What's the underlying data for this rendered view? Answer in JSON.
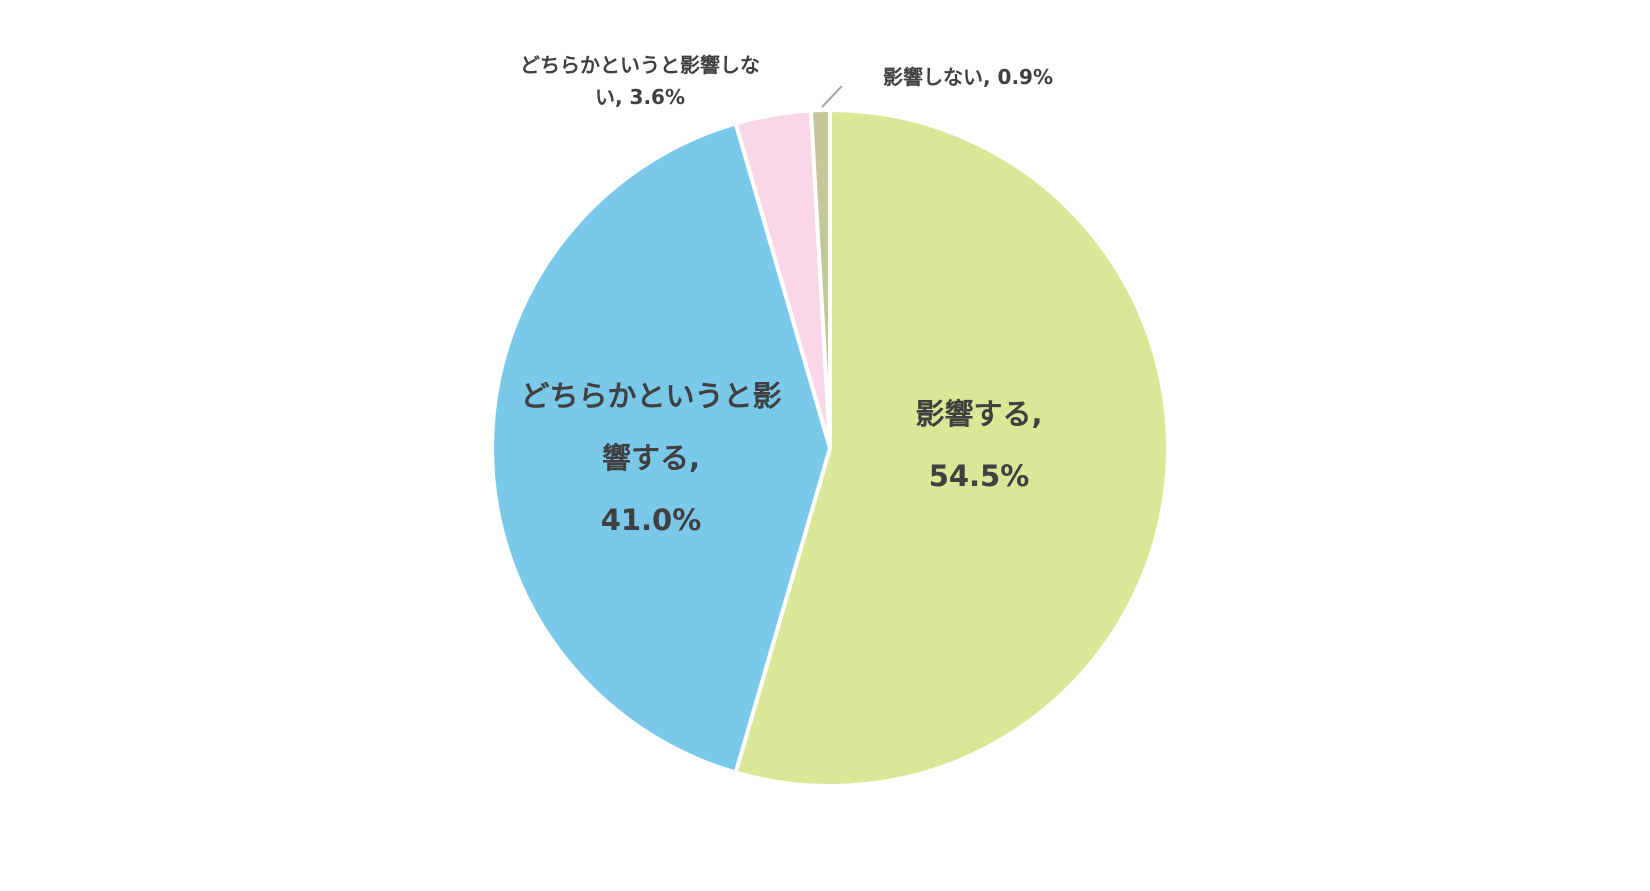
{
  "chart_data": {
    "type": "pie",
    "categories": [
      "影響する",
      "どちらかというと影響する",
      "どちらかというと影響しない",
      "影響しない"
    ],
    "values": [
      54.5,
      41.0,
      3.6,
      0.9
    ],
    "value_labels": [
      "54.5%",
      "41.0%",
      "3.6%",
      "0.9%"
    ],
    "label_separator": ", ",
    "colors": [
      "#d9e796",
      "#7ac9ea",
      "#f9d7e7",
      "#c4c79a"
    ]
  }
}
